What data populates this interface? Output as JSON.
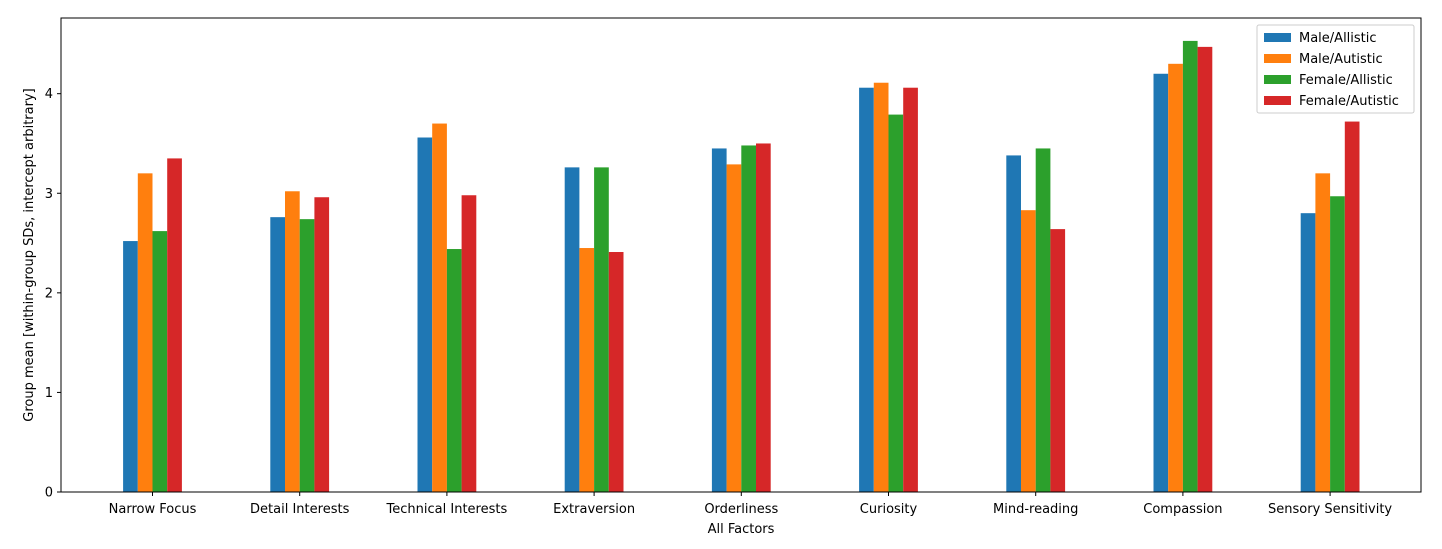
{
  "chart_data": {
    "type": "bar",
    "title": "",
    "xlabel": "All Factors",
    "ylabel": "Group mean [within-group SDs, intercept arbitrary]",
    "ylim": [
      0,
      4.76
    ],
    "yticks": [
      0,
      1,
      2,
      3,
      4
    ],
    "categories": [
      "Narrow Focus",
      "Detail Interests",
      "Technical Interests",
      "Extraversion",
      "Orderliness",
      "Curiosity",
      "Mind-reading",
      "Compassion",
      "Sensory Sensitivity"
    ],
    "series": [
      {
        "name": "Male/Allistic",
        "color": "#1f77b4",
        "values": [
          2.52,
          2.76,
          3.56,
          3.26,
          3.45,
          4.06,
          3.38,
          4.2,
          2.8
        ]
      },
      {
        "name": "Male/Autistic",
        "color": "#ff7f0e",
        "values": [
          3.2,
          3.02,
          3.7,
          2.45,
          3.29,
          4.11,
          2.83,
          4.3,
          3.2
        ]
      },
      {
        "name": "Female/Allistic",
        "color": "#2ca02c",
        "values": [
          2.62,
          2.74,
          2.44,
          3.26,
          3.48,
          3.79,
          3.45,
          4.53,
          2.97
        ]
      },
      {
        "name": "Female/Autistic",
        "color": "#d62728",
        "values": [
          3.35,
          2.96,
          2.98,
          2.41,
          3.5,
          4.06,
          2.64,
          4.47,
          3.72
        ]
      }
    ],
    "grid": false,
    "legend_position": "top-right"
  }
}
